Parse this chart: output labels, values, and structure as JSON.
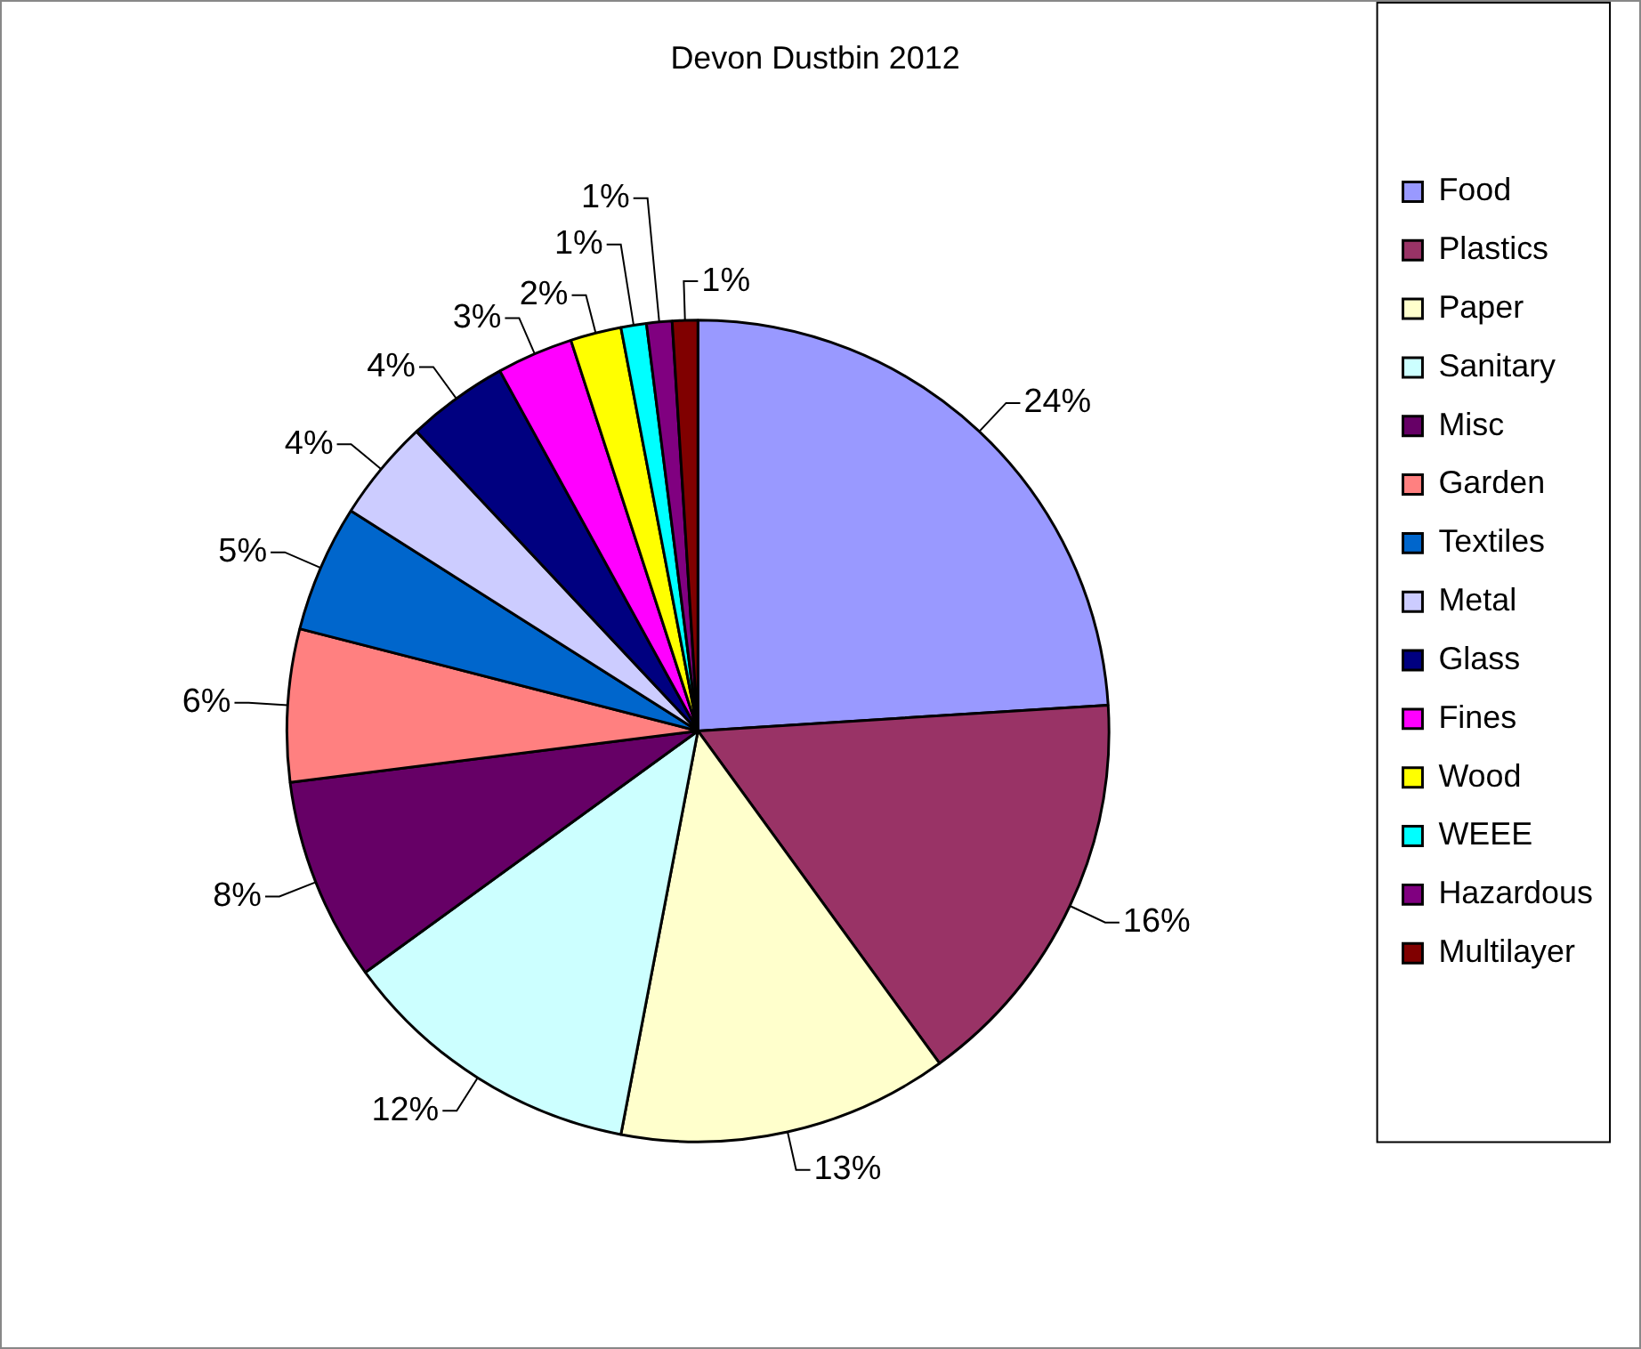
{
  "chart_data": {
    "type": "pie",
    "title": "Devon Dustbin 2012",
    "categories": [
      "Food",
      "Plastics",
      "Paper",
      "Sanitary",
      "Misc",
      "Garden",
      "Textiles",
      "Metal",
      "Glass",
      "Fines",
      "Wood",
      "WEEE",
      "Hazardous",
      "Multilayer"
    ],
    "values": [
      24,
      16,
      13,
      12,
      8,
      6,
      5,
      4,
      4,
      3,
      2,
      1,
      1,
      1
    ],
    "value_labels": [
      "24%",
      "16%",
      "13%",
      "12%",
      "8%",
      "6%",
      "5%",
      "4%",
      "4%",
      "3%",
      "2%",
      "1%",
      "1%",
      "1%"
    ],
    "colors": [
      "#9999ff",
      "#993366",
      "#ffffcc",
      "#ccffff",
      "#660066",
      "#ff8080",
      "#0066cc",
      "#ccccff",
      "#000080",
      "#ff00ff",
      "#ffff00",
      "#00ffff",
      "#800080",
      "#800000"
    ],
    "legend": "right"
  }
}
